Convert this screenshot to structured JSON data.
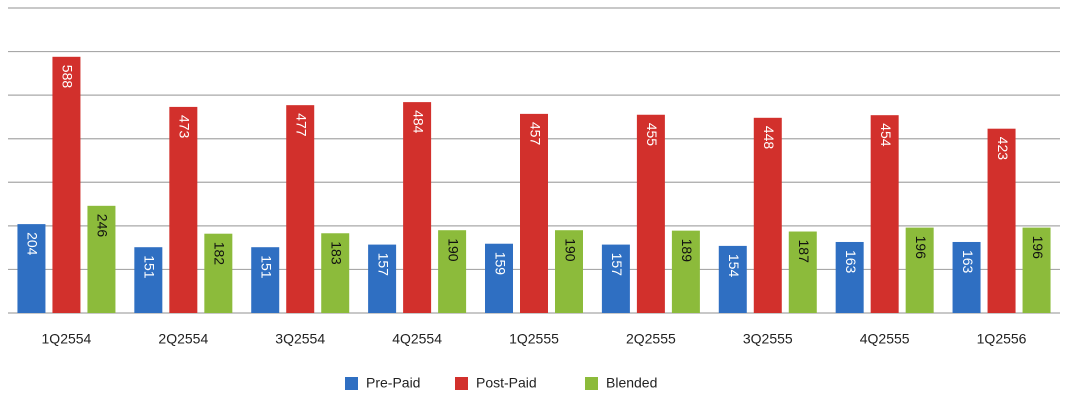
{
  "chart_data": {
    "type": "bar",
    "categories": [
      "1Q2554",
      "2Q2554",
      "3Q2554",
      "4Q2554",
      "1Q2555",
      "2Q2555",
      "3Q2555",
      "4Q2555",
      "1Q2556"
    ],
    "series": [
      {
        "name": "Pre-Paid",
        "color": "#2f6fc2",
        "values": [
          204,
          151,
          151,
          157,
          159,
          157,
          154,
          163,
          163
        ]
      },
      {
        "name": "Post-Paid",
        "color": "#d2302c",
        "values": [
          588,
          473,
          477,
          484,
          457,
          455,
          448,
          454,
          423
        ]
      },
      {
        "name": "Blended",
        "color": "#8cbb3b",
        "values": [
          246,
          182,
          183,
          190,
          190,
          189,
          187,
          196,
          196
        ]
      }
    ],
    "ylim": [
      0,
      700
    ],
    "yticks": [
      0,
      100,
      200,
      300,
      400,
      500,
      600,
      700
    ],
    "grid": true,
    "legend": "bottom"
  }
}
